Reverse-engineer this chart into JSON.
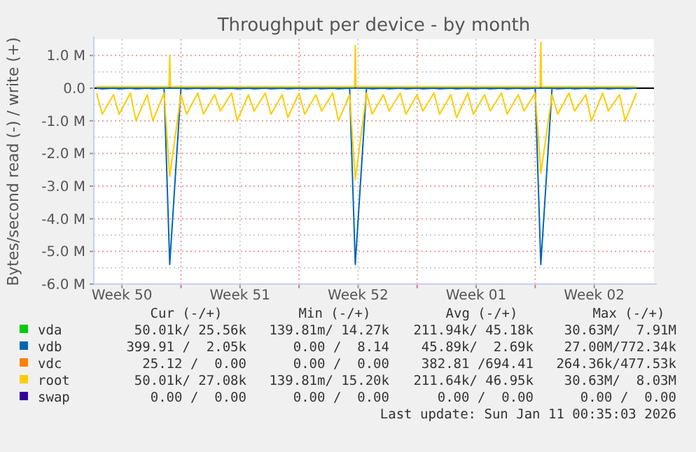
{
  "chart_data": {
    "type": "line",
    "title": "Throughput per device - by month",
    "ylabel": "Bytes/second read (-) / write (+)",
    "xlim": [
      "2025-12-09T20:00",
      "2026-01-12T01:00"
    ],
    "xticks": [
      {
        "value": "2025-12-11T12:00",
        "label": "Week 50"
      },
      {
        "value": "2025-12-15",
        "label": null
      },
      {
        "value": "2025-12-18T12:00",
        "label": "Week 51"
      },
      {
        "value": "2025-12-22",
        "label": null
      },
      {
        "value": "2025-12-25T12:00",
        "label": "Week 52"
      },
      {
        "value": "2025-12-29",
        "label": null
      },
      {
        "value": "2026-01-01T12:00",
        "label": "Week 01"
      },
      {
        "value": "2026-01-05",
        "label": null
      },
      {
        "value": "2026-01-08T12:00",
        "label": "Week 02"
      }
    ],
    "ylim": [
      -6,
      1.5
    ],
    "yticks": [
      {
        "value": -6,
        "label": "-6.0 M"
      },
      {
        "value": -5.5,
        "label": null
      },
      {
        "value": -5,
        "label": "-5.0 M"
      },
      {
        "value": -4.5,
        "label": null
      },
      {
        "value": -4,
        "label": "-4.0 M"
      },
      {
        "value": -3.5,
        "label": null
      },
      {
        "value": -3,
        "label": "-3.0 M"
      },
      {
        "value": -2.5,
        "label": null
      },
      {
        "value": -2,
        "label": "-2.0 M"
      },
      {
        "value": -1.5,
        "label": null
      },
      {
        "value": -1,
        "label": "-1.0 M"
      },
      {
        "value": -0.5,
        "label": null
      },
      {
        "value": 0,
        "label": "0.0"
      },
      {
        "value": 0.5,
        "label": null
      },
      {
        "value": 1,
        "label": "1.0 M"
      }
    ],
    "grid": true,
    "legend": "bottom",
    "line_style": "solid",
    "marker": "none",
    "x": [
      "2025-12-10T00:00",
      "2025-12-10T08:00",
      "2025-12-11T00:00",
      "2025-12-11T08:00",
      "2025-12-12T00:00",
      "2025-12-12T08:00",
      "2025-12-13T00:00",
      "2025-12-13T08:00",
      "2025-12-14T00:00",
      "2025-12-14T08:00",
      "2025-12-15T00:00",
      "2025-12-15T08:00",
      "2025-12-16T00:00",
      "2025-12-16T08:00",
      "2025-12-17T00:00",
      "2025-12-17T08:00",
      "2025-12-18T00:00",
      "2025-12-18T08:00",
      "2025-12-19T00:00",
      "2025-12-19T08:00",
      "2025-12-20T00:00",
      "2025-12-20T08:00",
      "2025-12-21T00:00",
      "2025-12-21T08:00",
      "2025-12-22T00:00",
      "2025-12-22T08:00",
      "2025-12-23T00:00",
      "2025-12-23T08:00",
      "2025-12-24T00:00",
      "2025-12-24T08:00",
      "2025-12-25T00:00",
      "2025-12-25T08:00",
      "2025-12-26T00:00",
      "2025-12-26T08:00",
      "2025-12-27T00:00",
      "2025-12-27T08:00",
      "2025-12-28T00:00",
      "2025-12-28T08:00",
      "2025-12-29T00:00",
      "2025-12-29T08:00",
      "2025-12-30T00:00",
      "2025-12-30T08:00",
      "2025-12-31T00:00",
      "2025-12-31T08:00",
      "2026-01-01T00:00",
      "2026-01-01T08:00",
      "2026-01-02T00:00",
      "2026-01-02T08:00",
      "2026-01-03T00:00",
      "2026-01-03T08:00",
      "2026-01-04T00:00",
      "2026-01-04T08:00",
      "2026-01-05T00:00",
      "2026-01-05T08:00",
      "2026-01-06T00:00",
      "2026-01-06T08:00",
      "2026-01-07T00:00",
      "2026-01-07T08:00",
      "2026-01-08T00:00",
      "2026-01-08T08:00",
      "2026-01-09T00:00",
      "2026-01-09T08:00",
      "2026-01-10T00:00",
      "2026-01-10T08:00",
      "2026-01-11T00:00"
    ],
    "series": [
      {
        "name": "vda",
        "color": "#00cc00",
        "values": [
          null,
          null,
          null,
          null,
          null,
          null,
          null,
          null,
          null,
          null,
          null,
          null,
          null,
          null,
          null,
          null,
          null,
          null,
          null,
          null,
          null,
          null,
          null,
          null,
          null,
          null,
          null,
          null,
          null,
          null,
          null,
          null,
          null,
          null,
          null,
          null,
          null,
          null,
          null,
          null,
          null,
          null,
          null,
          null,
          null,
          null,
          null,
          null,
          null,
          null,
          null,
          null,
          null,
          null,
          null,
          null,
          null,
          null,
          null,
          null,
          null,
          null,
          null,
          null,
          null
        ]
      },
      {
        "color": "#0066b3",
        "values": [
          0,
          -0.02,
          0,
          -0.02,
          0,
          -0.02,
          0,
          -0.02,
          0,
          -5.4,
          0,
          -0.02,
          0,
          -0.02,
          0,
          -0.02,
          0,
          -0.02,
          0,
          -0.02,
          0,
          -0.02,
          0,
          -0.02,
          0,
          -0.02,
          0,
          -0.02,
          0,
          -0.02,
          0,
          -5.4,
          0,
          -0.02,
          0,
          -0.02,
          0,
          -0.02,
          0,
          -0.02,
          0,
          -0.02,
          0,
          -0.02,
          0,
          -0.02,
          0,
          -0.02,
          0,
          -0.02,
          0,
          -0.02,
          0,
          -5.4,
          0,
          -0.02,
          0,
          -0.02,
          0,
          -0.02,
          0,
          -0.02,
          0,
          -0.02,
          0
        ]
      },
      {
        "name": "vdb",
        "color": "#0066b3",
        "x": [
          "2025-12-10T00:00",
          "2025-12-14T07:00",
          "2025-12-14T08:00",
          "2025-12-14T09:00",
          "2025-12-25T07:00",
          "2025-12-25T08:00",
          "2025-12-25T09:00",
          "2026-01-05T07:00",
          "2026-01-05T08:00",
          "2026-01-05T09:00",
          "2026-01-11T00:00"
        ],
        "values": [
          0,
          0,
          0.15,
          0,
          0,
          0.15,
          0,
          0,
          0.15,
          0,
          0
        ]
      },
      {
        "name": "vdc",
        "color": "#ff8000",
        "values": [
          null,
          null,
          null,
          null,
          null,
          null,
          null,
          null,
          null,
          null,
          null,
          null,
          null,
          null,
          null,
          null,
          null,
          null,
          null,
          null,
          null,
          null,
          null,
          null,
          null,
          null,
          null,
          null,
          null,
          null,
          null,
          null,
          null,
          null,
          null,
          null,
          null,
          null,
          null,
          null,
          null,
          null,
          null,
          null,
          null,
          null,
          null,
          null,
          null,
          null,
          null,
          null,
          null,
          null,
          null,
          null,
          null,
          null,
          null,
          null,
          null,
          null,
          null,
          null,
          null
        ]
      },
      {
        "color": "#ffcc00",
        "values": [
          -0.15,
          -0.8,
          -0.2,
          -0.8,
          -0.15,
          -1.0,
          -0.2,
          -1.0,
          -0.15,
          -2.7,
          -0.2,
          -0.8,
          -0.15,
          -0.8,
          -0.2,
          -0.7,
          -0.15,
          -1.0,
          -0.2,
          -0.7,
          -0.15,
          -0.8,
          -0.2,
          -0.9,
          -0.15,
          -0.8,
          -0.2,
          -0.7,
          -0.15,
          -1.0,
          -0.2,
          -2.8,
          -0.15,
          -0.8,
          -0.2,
          -0.7,
          -0.15,
          -0.8,
          -0.2,
          -0.7,
          -0.15,
          -0.8,
          -0.2,
          -0.9,
          -0.15,
          -0.8,
          -0.2,
          -0.7,
          -0.15,
          -0.8,
          -0.2,
          -0.7,
          -0.15,
          -2.6,
          -0.2,
          -0.8,
          -0.15,
          -0.7,
          -0.2,
          -1.0,
          -0.15,
          -0.7,
          -0.2,
          -1.0,
          -0.15
        ]
      },
      {
        "name": "root",
        "color": "#ffcc00",
        "x": [
          "2025-12-10T00:00",
          "2025-12-14T07:00",
          "2025-12-14T08:00",
          "2025-12-14T09:00",
          "2025-12-25T07:00",
          "2025-12-25T08:00",
          "2025-12-25T09:00",
          "2026-01-05T07:00",
          "2026-01-05T08:00",
          "2026-01-05T09:00",
          "2026-01-11T00:00"
        ],
        "values": [
          0.05,
          0.05,
          1.0,
          0.05,
          0.05,
          1.3,
          0.05,
          0.05,
          1.4,
          0.05,
          0.05
        ]
      },
      {
        "name": "swap",
        "color": "#330099",
        "values": [
          null,
          null,
          null,
          null,
          null,
          null,
          null,
          null,
          null,
          null,
          null,
          null,
          null,
          null,
          null,
          null,
          null,
          null,
          null,
          null,
          null,
          null,
          null,
          null,
          null,
          null,
          null,
          null,
          null,
          null,
          null,
          null,
          null,
          null,
          null,
          null,
          null,
          null,
          null,
          null,
          null,
          null,
          null,
          null,
          null,
          null,
          null,
          null,
          null,
          null,
          null,
          null,
          null,
          null,
          null,
          null,
          null,
          null,
          null,
          null,
          null,
          null,
          null,
          null,
          null
        ]
      }
    ],
    "annotations": [
      "Cur (-/+)",
      "Min (-/+)",
      "Avg (-/+)",
      "Max (-/+)",
      "50.01k/ 25.56k",
      "139.81m/ 14.27k",
      "211.94k/ 45.18k",
      "30.63M/  7.91M",
      "399.91 /  2.05k",
      "0.00 /  8.14",
      "45.89k/  2.69k",
      "27.00M/772.34k",
      "25.12 /  0.00",
      "0.00 /  0.00",
      "382.81 /694.41",
      "264.36k/477.53k",
      "50.01k/ 27.08k",
      "139.81m/ 15.20k",
      "211.64k/ 46.95k",
      "30.63M/  8.03M",
      "0.00 /  0.00",
      "0.00 /  0.00",
      "0.00 /  0.00",
      "0.00 /  0.00",
      "Last update: Sun Jan 11 00:35:03 2026"
    ]
  }
}
